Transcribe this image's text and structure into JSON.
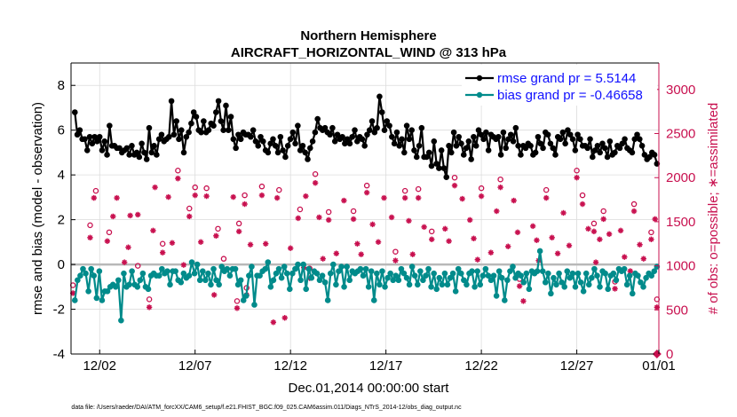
{
  "chart_data": {
    "type": "line",
    "title": "Northern Hemisphere",
    "subtitle": "AIRCRAFT_HORIZONTAL_WIND @ 313 hPa",
    "xlabel": "Dec.01,2014 00:00:00 start",
    "ylabel": "rmse and bias (model - observation)",
    "ylabel_right": "# of obs: o=possible; ∗=assimilated",
    "footnote": "data file: /Users/raeder/DAI/ATM_forcXX/CAM6_setup/f.e21.FHIST_BGC.f09_025.CAM6assim.011/Diags_NTrS_2014-12/obs_diag_output.nc",
    "xlim": [
      0.5,
      31.3
    ],
    "ylim": [
      -4,
      9
    ],
    "ylim_right": [
      0,
      3300
    ],
    "x_ticks": [
      {
        "value": 2,
        "label": "12/02"
      },
      {
        "value": 7,
        "label": "12/07"
      },
      {
        "value": 12,
        "label": "12/12"
      },
      {
        "value": 17,
        "label": "12/17"
      },
      {
        "value": 22,
        "label": "12/22"
      },
      {
        "value": 27,
        "label": "12/27"
      },
      {
        "value": 32,
        "label": "01/01"
      }
    ],
    "y_ticks": [
      "-4",
      "-2",
      "0",
      "2",
      "4",
      "6",
      "8"
    ],
    "y_right_ticks": [
      "0",
      "500",
      "1000",
      "1500",
      "2000",
      "2500",
      "3000"
    ],
    "series": [
      {
        "name": "rmse",
        "legend": "rmse grand pr = 5.5144",
        "color": "#000000",
        "values": [
          6.8,
          5.8,
          6.0,
          5.6,
          5.6,
          5.1,
          5.7,
          5.4,
          5.7,
          5.5,
          5.7,
          5.1,
          5.5,
          4.9,
          6.2,
          5.3,
          5.3,
          5.2,
          5.2,
          5.0,
          5.1,
          5.2,
          4.9,
          5.3,
          4.9,
          5.0,
          4.8,
          5.4,
          5.0,
          4.7,
          6.1,
          5.0,
          5.3,
          4.9,
          5.6,
          5.8,
          5.5,
          5.6,
          5.7,
          7.3,
          5.8,
          6.4,
          5.6,
          6.0,
          5.0,
          5.7,
          5.9,
          6.3,
          6.8,
          6.6,
          6.0,
          5.9,
          6.4,
          5.9,
          6.0,
          6.3,
          6.2,
          6.8,
          7.3,
          6.4,
          6.0,
          7.1,
          6.0,
          6.6,
          5.6,
          5.2,
          5.8,
          5.6,
          5.9,
          5.8,
          5.8,
          5.7,
          6.0,
          5.5,
          5.3,
          5.7,
          5.5,
          5.1,
          5.0,
          5.4,
          5.6,
          5.3,
          5.0,
          5.7,
          5.1,
          4.8,
          5.3,
          5.6,
          5.9,
          5.4,
          6.2,
          5.1,
          5.3,
          5.0,
          4.7,
          5.2,
          5.5,
          5.9,
          6.5,
          6.1,
          6.0,
          6.1,
          5.9,
          5.8,
          6.1,
          5.5,
          5.8,
          5.6,
          5.7,
          5.4,
          5.6,
          5.4,
          5.7,
          6.0,
          5.5,
          5.7,
          5.6,
          5.3,
          5.8,
          6.0,
          6.4,
          5.9,
          6.1,
          7.5,
          6.8,
          6.0,
          6.4,
          6.2,
          5.7,
          5.4,
          5.9,
          5.3,
          5.6,
          5.0,
          6.2,
          5.6,
          6.0,
          5.1,
          4.8,
          5.3,
          6.1,
          4.8,
          4.8,
          5.0,
          4.4,
          5.5,
          4.5,
          4.3,
          5.1,
          4.3,
          3.9,
          5.3,
          5.0,
          5.9,
          5.3,
          5.7,
          5.4,
          4.9,
          5.2,
          5.5,
          4.7,
          5.7,
          5.3,
          6.0,
          5.8,
          5.6,
          5.9,
          5.1,
          5.8,
          5.7,
          5.6,
          5.7,
          4.9,
          5.9,
          5.2,
          5.6,
          5.8,
          5.5,
          6.1,
          5.3,
          4.9,
          5.3,
          5.2,
          5.4,
          5.3,
          4.9,
          5.0,
          5.7,
          5.4,
          5.2,
          5.9,
          5.8,
          5.4,
          5.2,
          4.9,
          5.7,
          5.6,
          5.9,
          5.4,
          6.0,
          5.8,
          5.6,
          5.1,
          5.8,
          5.6,
          5.3,
          5.3,
          5.2,
          5.6,
          4.8,
          5.1,
          5.3,
          5.0,
          5.4,
          5.2,
          4.8,
          5.5,
          4.9,
          5.0,
          5.3,
          5.2,
          5.4,
          5.6,
          5.2,
          5.1,
          5.0,
          5.6,
          5.8,
          5.6,
          5.3,
          4.9,
          4.7,
          4.8,
          5.0,
          4.9,
          4.5
        ]
      },
      {
        "name": "bias",
        "legend": "bias grand pr = -0.46658",
        "color": "#008b8b",
        "values": [
          -1.6,
          -0.7,
          -0.5,
          -0.2,
          -0.4,
          -1.2,
          -0.2,
          -0.5,
          -1.5,
          -0.3,
          -1.6,
          -1.2,
          -1.2,
          -1.0,
          -0.9,
          -1.0,
          -0.7,
          -2.5,
          -0.4,
          -1.0,
          -0.9,
          -0.3,
          -0.9,
          -1.0,
          -0.7,
          -0.4,
          -1.0,
          -1.1,
          -0.5,
          -0.4,
          -0.5,
          -0.5,
          -0.2,
          -0.4,
          -0.3,
          -0.9,
          -0.3,
          -0.3,
          -0.7,
          -0.8,
          -0.4,
          -0.6,
          -0.5,
          0.1,
          -0.4,
          0.0,
          -0.7,
          -0.3,
          -0.7,
          -0.4,
          -0.9,
          -0.2,
          -0.7,
          -0.9,
          -0.1,
          -0.3,
          -0.2,
          -0.5,
          -0.2,
          -0.2,
          -0.9,
          -0.7,
          -1.6,
          -1.4,
          -0.5,
          -0.1,
          -1.8,
          -0.5,
          -0.5,
          -0.3,
          -0.2,
          0.1,
          -1.0,
          -0.7,
          -0.4,
          -0.2,
          -0.6,
          -0.1,
          -0.4,
          -1.1,
          -0.4,
          -0.2,
          0.0,
          -0.7,
          0.0,
          -1.1,
          -0.2,
          -0.6,
          -0.3,
          -0.4,
          -0.7,
          -0.5,
          -0.8,
          -1.6,
          -0.4,
          0.0,
          -0.9,
          -0.3,
          -0.1,
          -1.0,
          -0.1,
          -0.7,
          -0.3,
          -0.4,
          -0.3,
          -0.2,
          -0.5,
          -0.2,
          -1.0,
          -0.3,
          -1.6,
          -0.4,
          -0.9,
          -0.3,
          -1.0,
          -0.6,
          -0.4,
          -0.7,
          -0.5,
          -0.7,
          -0.2,
          -0.4,
          -0.6,
          -0.9,
          -0.1,
          -0.5,
          -0.9,
          -0.3,
          -0.7,
          -0.5,
          -0.2,
          -1.0,
          -0.4,
          -1.1,
          -0.6,
          -0.9,
          -0.4,
          -0.9,
          -0.6,
          -0.4,
          -1.2,
          -0.2,
          -0.4,
          -0.7,
          -0.9,
          -0.4,
          -0.3,
          -1.0,
          -0.3,
          -0.9,
          -0.5,
          -0.2,
          -0.5,
          -0.7,
          -0.5,
          -1.4,
          -0.3,
          -0.6,
          -1.6,
          -0.7,
          -0.3,
          -0.1,
          -0.6,
          -0.4,
          -0.5,
          -0.8,
          -0.4,
          -1.1,
          -0.3,
          -0.4,
          -0.3,
          0.6,
          -0.3,
          -0.8,
          -0.4,
          -1.3,
          -0.6,
          -0.9,
          -0.4,
          -0.8,
          -1.0,
          -0.3,
          -0.6,
          -0.4,
          -1.0,
          -0.4,
          -0.8,
          -1.2,
          -0.4,
          -0.9,
          -0.6,
          -0.2,
          -0.5,
          -1.0,
          -0.3,
          -0.4,
          -1.1,
          -0.5,
          -0.4,
          -0.7,
          -0.2,
          -0.3,
          -0.2,
          -0.9,
          -0.5,
          -1.3,
          -0.4,
          -0.5,
          -0.8,
          -1.0,
          -0.6,
          -0.4,
          -0.5,
          -0.3,
          -0.1
        ]
      }
    ],
    "obs_counts": {
      "assimilated_color": "#c8104f",
      "possible_color": "#c8104f",
      "assimilated": [
        [
          0.6,
          690
        ],
        [
          1.5,
          1320
        ],
        [
          1.7,
          1770
        ],
        [
          2.4,
          1280
        ],
        [
          2.7,
          1560
        ],
        [
          2.9,
          1770
        ],
        [
          3.3,
          1040
        ],
        [
          3.5,
          1210
        ],
        [
          3.6,
          1570
        ],
        [
          4.0,
          1580
        ],
        [
          4.6,
          530
        ],
        [
          4.8,
          1400
        ],
        [
          4.9,
          1890
        ],
        [
          5.3,
          1150
        ],
        [
          5.6,
          1780
        ],
        [
          5.8,
          1260
        ],
        [
          6.1,
          1990
        ],
        [
          6.4,
          1010
        ],
        [
          6.7,
          1560
        ],
        [
          7.0,
          1800
        ],
        [
          7.3,
          1270
        ],
        [
          7.6,
          1790
        ],
        [
          8.0,
          670
        ],
        [
          8.1,
          1340
        ],
        [
          8.5,
          960
        ],
        [
          9.0,
          1780
        ],
        [
          9.2,
          520
        ],
        [
          9.3,
          1390
        ],
        [
          9.6,
          1700
        ],
        [
          9.7,
          670
        ],
        [
          9.9,
          1240
        ],
        [
          10.5,
          1800
        ],
        [
          10.7,
          1250
        ],
        [
          11.1,
          360
        ],
        [
          11.3,
          1770
        ],
        [
          11.7,
          410
        ],
        [
          12.0,
          1200
        ],
        [
          12.4,
          1540
        ],
        [
          12.7,
          980
        ],
        [
          12.8,
          1790
        ],
        [
          13.0,
          860
        ],
        [
          13.3,
          1940
        ],
        [
          13.5,
          1550
        ],
        [
          13.7,
          1080
        ],
        [
          14.0,
          1520
        ],
        [
          14.4,
          1140
        ],
        [
          14.8,
          1740
        ],
        [
          15.3,
          1530
        ],
        [
          15.5,
          1250
        ],
        [
          15.7,
          1130
        ],
        [
          16.0,
          1830
        ],
        [
          16.3,
          1470
        ],
        [
          16.6,
          1270
        ],
        [
          16.9,
          1770
        ],
        [
          17.3,
          1550
        ],
        [
          17.5,
          1060
        ],
        [
          18.0,
          1770
        ],
        [
          18.2,
          1510
        ],
        [
          18.4,
          1130
        ],
        [
          18.7,
          1770
        ],
        [
          19.0,
          1440
        ],
        [
          19.4,
          1300
        ],
        [
          20.1,
          1420
        ],
        [
          20.3,
          1280
        ],
        [
          20.6,
          1910
        ],
        [
          21.0,
          1760
        ],
        [
          21.4,
          1520
        ],
        [
          21.6,
          1310
        ],
        [
          21.8,
          1070
        ],
        [
          22.0,
          1790
        ],
        [
          22.5,
          1150
        ],
        [
          22.8,
          1620
        ],
        [
          23.0,
          1890
        ],
        [
          23.4,
          1220
        ],
        [
          23.7,
          1740
        ],
        [
          23.9,
          1380
        ],
        [
          24.0,
          770
        ],
        [
          24.2,
          600
        ],
        [
          24.7,
          1450
        ],
        [
          24.9,
          1290
        ],
        [
          25.0,
          1060
        ],
        [
          25.4,
          1770
        ],
        [
          25.7,
          1320
        ],
        [
          26.0,
          1140
        ],
        [
          26.3,
          1600
        ],
        [
          26.6,
          1230
        ],
        [
          27.0,
          2000
        ],
        [
          27.3,
          1700
        ],
        [
          27.6,
          1420
        ],
        [
          27.9,
          1390
        ],
        [
          28.0,
          1040
        ],
        [
          28.2,
          1300
        ],
        [
          28.4,
          1530
        ],
        [
          28.7,
          1360
        ],
        [
          29.0,
          740
        ],
        [
          29.3,
          1400
        ],
        [
          29.5,
          1100
        ],
        [
          29.8,
          940
        ],
        [
          30.0,
          1620
        ],
        [
          30.3,
          1240
        ],
        [
          30.5,
          1080
        ],
        [
          30.9,
          1300
        ],
        [
          31.1,
          1530
        ],
        [
          31.2,
          530
        ]
      ],
      "possible": [
        [
          0.6,
          780
        ],
        [
          1.5,
          1460
        ],
        [
          1.8,
          1850
        ],
        [
          2.5,
          1380
        ],
        [
          4.0,
          1000
        ],
        [
          4.6,
          620
        ],
        [
          5.3,
          1250
        ],
        [
          6.1,
          2080
        ],
        [
          6.7,
          1650
        ],
        [
          7.0,
          1890
        ],
        [
          7.6,
          1880
        ],
        [
          8.2,
          1420
        ],
        [
          8.5,
          1080
        ],
        [
          9.2,
          600
        ],
        [
          9.3,
          1480
        ],
        [
          9.6,
          1800
        ],
        [
          9.7,
          750
        ],
        [
          10.5,
          1900
        ],
        [
          11.4,
          1860
        ],
        [
          12.5,
          1640
        ],
        [
          13.0,
          970
        ],
        [
          13.3,
          2040
        ],
        [
          14.0,
          1610
        ],
        [
          15.3,
          1620
        ],
        [
          16.0,
          1910
        ],
        [
          17.5,
          1160
        ],
        [
          18.0,
          1850
        ],
        [
          18.7,
          1870
        ],
        [
          19.4,
          1390
        ],
        [
          20.6,
          2000
        ],
        [
          22.0,
          1880
        ],
        [
          23.0,
          1980
        ],
        [
          24.0,
          850
        ],
        [
          25.4,
          1860
        ],
        [
          27.0,
          2080
        ],
        [
          27.3,
          1800
        ],
        [
          27.9,
          1480
        ],
        [
          28.4,
          1620
        ],
        [
          29.0,
          820
        ],
        [
          30.0,
          1700
        ],
        [
          30.9,
          1380
        ],
        [
          31.2,
          620
        ]
      ]
    },
    "zero_marker": {
      "x": 31.2,
      "count": 0
    }
  }
}
